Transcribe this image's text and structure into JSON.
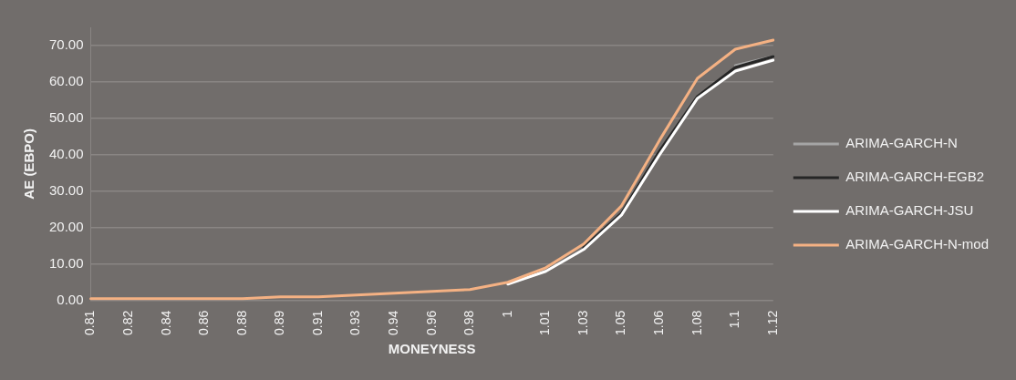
{
  "chart_data": {
    "type": "line",
    "xlabel": "MONEYNESS",
    "ylabel": "AE (EBPO)",
    "categories": [
      "0.81",
      "0.82",
      "0.84",
      "0.86",
      "0.88",
      "0.89",
      "0.91",
      "0.93",
      "0.94",
      "0.96",
      "0.98",
      "1",
      "1.01",
      "1.03",
      "1.05",
      "1.06",
      "1.08",
      "1.1",
      "1.12"
    ],
    "series": [
      {
        "name": "ARIMA-GARCH-N",
        "color": "#a5a5a5",
        "values": [
          null,
          null,
          null,
          null,
          null,
          null,
          null,
          null,
          null,
          null,
          null,
          null,
          null,
          null,
          null,
          null,
          null,
          64.5,
          67
        ]
      },
      {
        "name": "ARIMA-GARCH-EGB2",
        "color": "#262626",
        "values": [
          null,
          null,
          null,
          null,
          null,
          null,
          null,
          null,
          null,
          null,
          null,
          null,
          null,
          14.5,
          24,
          41,
          56,
          64,
          67
        ]
      },
      {
        "name": "ARIMA-GARCH-JSU",
        "color": "#ffffff",
        "values": [
          null,
          null,
          null,
          null,
          null,
          null,
          null,
          null,
          null,
          null,
          null,
          4.5,
          8,
          14,
          23.5,
          40,
          55.5,
          63,
          66
        ]
      },
      {
        "name": "ARIMA-GARCH-N-mod",
        "color": "#f4b183",
        "values": [
          0.5,
          0.5,
          0.5,
          0.5,
          0.5,
          1,
          1,
          1.5,
          2,
          2.5,
          3,
          5,
          9,
          15.5,
          26,
          44,
          61,
          69,
          71.5
        ]
      }
    ],
    "ylim": [
      0,
      75
    ],
    "yticks": [
      {
        "value": 0,
        "label": "0.00"
      },
      {
        "value": 10,
        "label": "10.00"
      },
      {
        "value": 20,
        "label": "20.00"
      },
      {
        "value": 30,
        "label": "30.00"
      },
      {
        "value": 40,
        "label": "40.00"
      },
      {
        "value": 50,
        "label": "50.00"
      },
      {
        "value": 60,
        "label": "60.00"
      },
      {
        "value": 70,
        "label": "70.00"
      }
    ],
    "grid": "y",
    "legend": "right",
    "marker": "none",
    "line_style": "solid"
  }
}
